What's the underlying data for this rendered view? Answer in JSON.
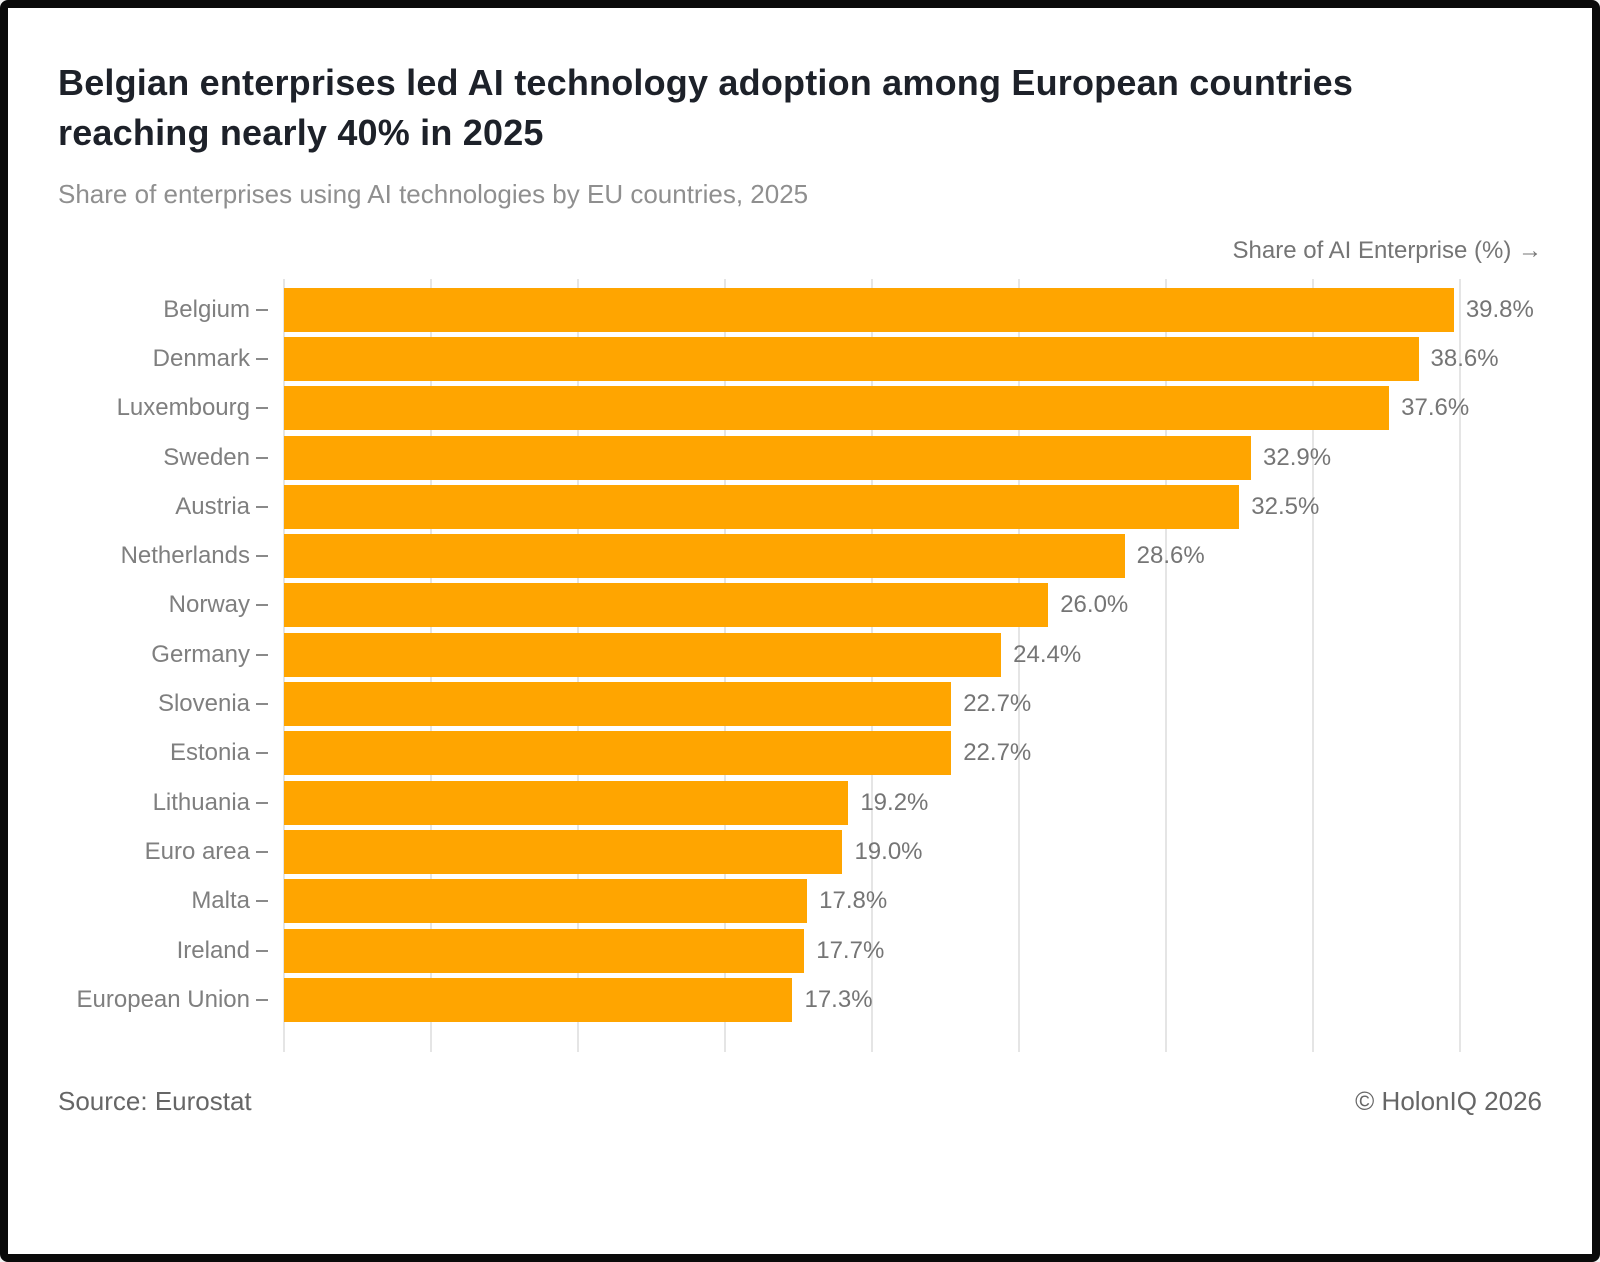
{
  "header": {
    "title_lines": [
      "Belgian enterprises led AI technology adoption among European countries",
      "reaching nearly 40% in 2025"
    ],
    "subtitle": "Share of enterprises using AI technologies by EU countries, 2025"
  },
  "axis": {
    "label": "Share of AI Enterprise (%) →"
  },
  "chart_data": {
    "type": "bar",
    "orientation": "horizontal",
    "title": "Belgian enterprises led AI technology adoption among European countries reaching nearly 40% in 2025",
    "subtitle": "Share of enterprises using AI technologies by EU countries, 2025",
    "xlabel": "Share of AI Enterprise (%)",
    "ylabel": "",
    "categories": [
      "Belgium",
      "Denmark",
      "Luxembourg",
      "Sweden",
      "Austria",
      "Netherlands",
      "Norway",
      "Germany",
      "Slovenia",
      "Estonia",
      "Lithuania",
      "Euro area",
      "Malta",
      "Ireland",
      "European Union"
    ],
    "values": [
      39.8,
      38.6,
      37.6,
      32.9,
      32.5,
      28.6,
      26.0,
      24.4,
      22.7,
      22.7,
      19.2,
      19.0,
      17.8,
      17.7,
      17.3
    ],
    "value_labels": [
      "39.8%",
      "38.6%",
      "37.6%",
      "32.9%",
      "32.5%",
      "28.6%",
      "26.0%",
      "24.4%",
      "22.7%",
      "22.7%",
      "19.2%",
      "19.0%",
      "17.8%",
      "17.7%",
      "17.3%"
    ],
    "xlim": [
      0,
      42.8
    ],
    "gridlines": {
      "interval": 5,
      "min": 0,
      "max": 40,
      "visible": true
    },
    "legend": "none"
  },
  "footer": {
    "source": "Source: Eurostat",
    "copyright": "© HolonIQ 2026"
  },
  "colors": {
    "bar": "#ffa500",
    "title": "#1d2129",
    "subtitle": "#8f8f8f",
    "axis_label": "#757575",
    "category_label": "#7f7f7f",
    "value_label": "#757575",
    "gridline": "#e5e5e5",
    "tick": "#8a8a8a",
    "footer_text": "#666666",
    "background": "#ffffff",
    "border": "#0a0a0a"
  }
}
